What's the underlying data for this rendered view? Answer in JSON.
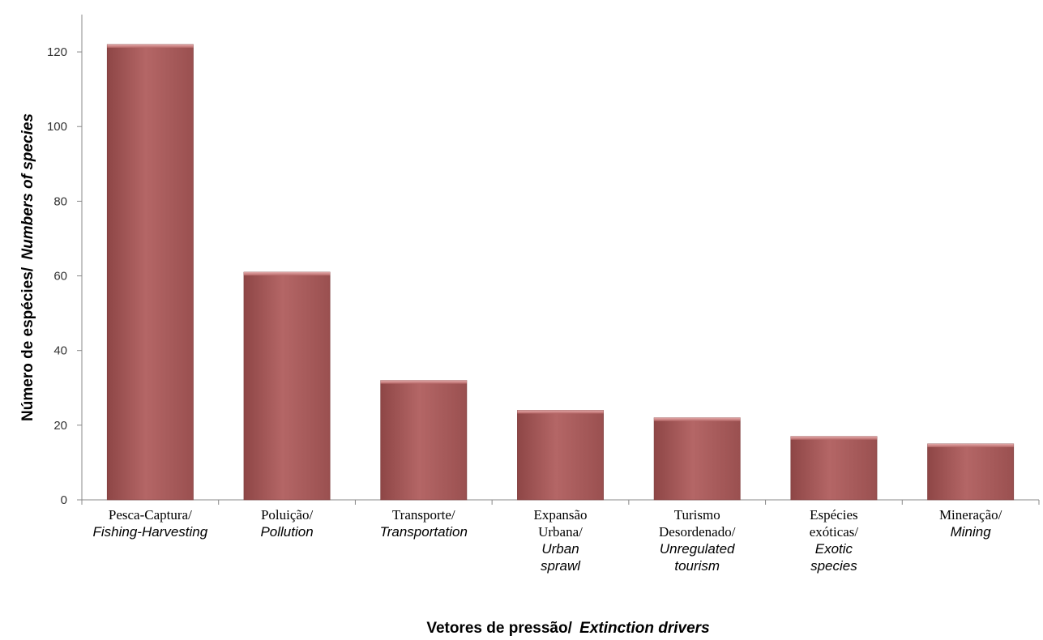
{
  "chart_data": {
    "type": "bar",
    "title": "",
    "xlabel": {
      "pt": "Vetores de pressão/",
      "en": "Extinction drivers"
    },
    "ylabel": {
      "pt": "Número de espécies/",
      "en": "Numbers of species"
    },
    "ylim": [
      0,
      130
    ],
    "yticks": [
      0,
      20,
      40,
      60,
      80,
      100,
      120
    ],
    "grid": false,
    "legend": "none",
    "bar_color": "#b06060",
    "categories": [
      {
        "pt": [
          "Pesca-Captura/"
        ],
        "en": [
          "Fishing-Harvesting"
        ]
      },
      {
        "pt": [
          "Poluição/"
        ],
        "en": [
          "Pollution"
        ]
      },
      {
        "pt": [
          "Transporte/"
        ],
        "en": [
          "Transportation"
        ]
      },
      {
        "pt": [
          "Expansão",
          "Urbana/"
        ],
        "en": [
          "Urban",
          "sprawl"
        ]
      },
      {
        "pt": [
          "Turismo",
          "Desordenado/"
        ],
        "en": [
          "Unregulated",
          "tourism"
        ]
      },
      {
        "pt": [
          "Espécies",
          "exóticas/"
        ],
        "en": [
          "Exotic",
          "species"
        ]
      },
      {
        "pt": [
          "Mineração/"
        ],
        "en": [
          "Mining"
        ]
      }
    ],
    "values": [
      122,
      61,
      32,
      24,
      22,
      17,
      15
    ]
  }
}
